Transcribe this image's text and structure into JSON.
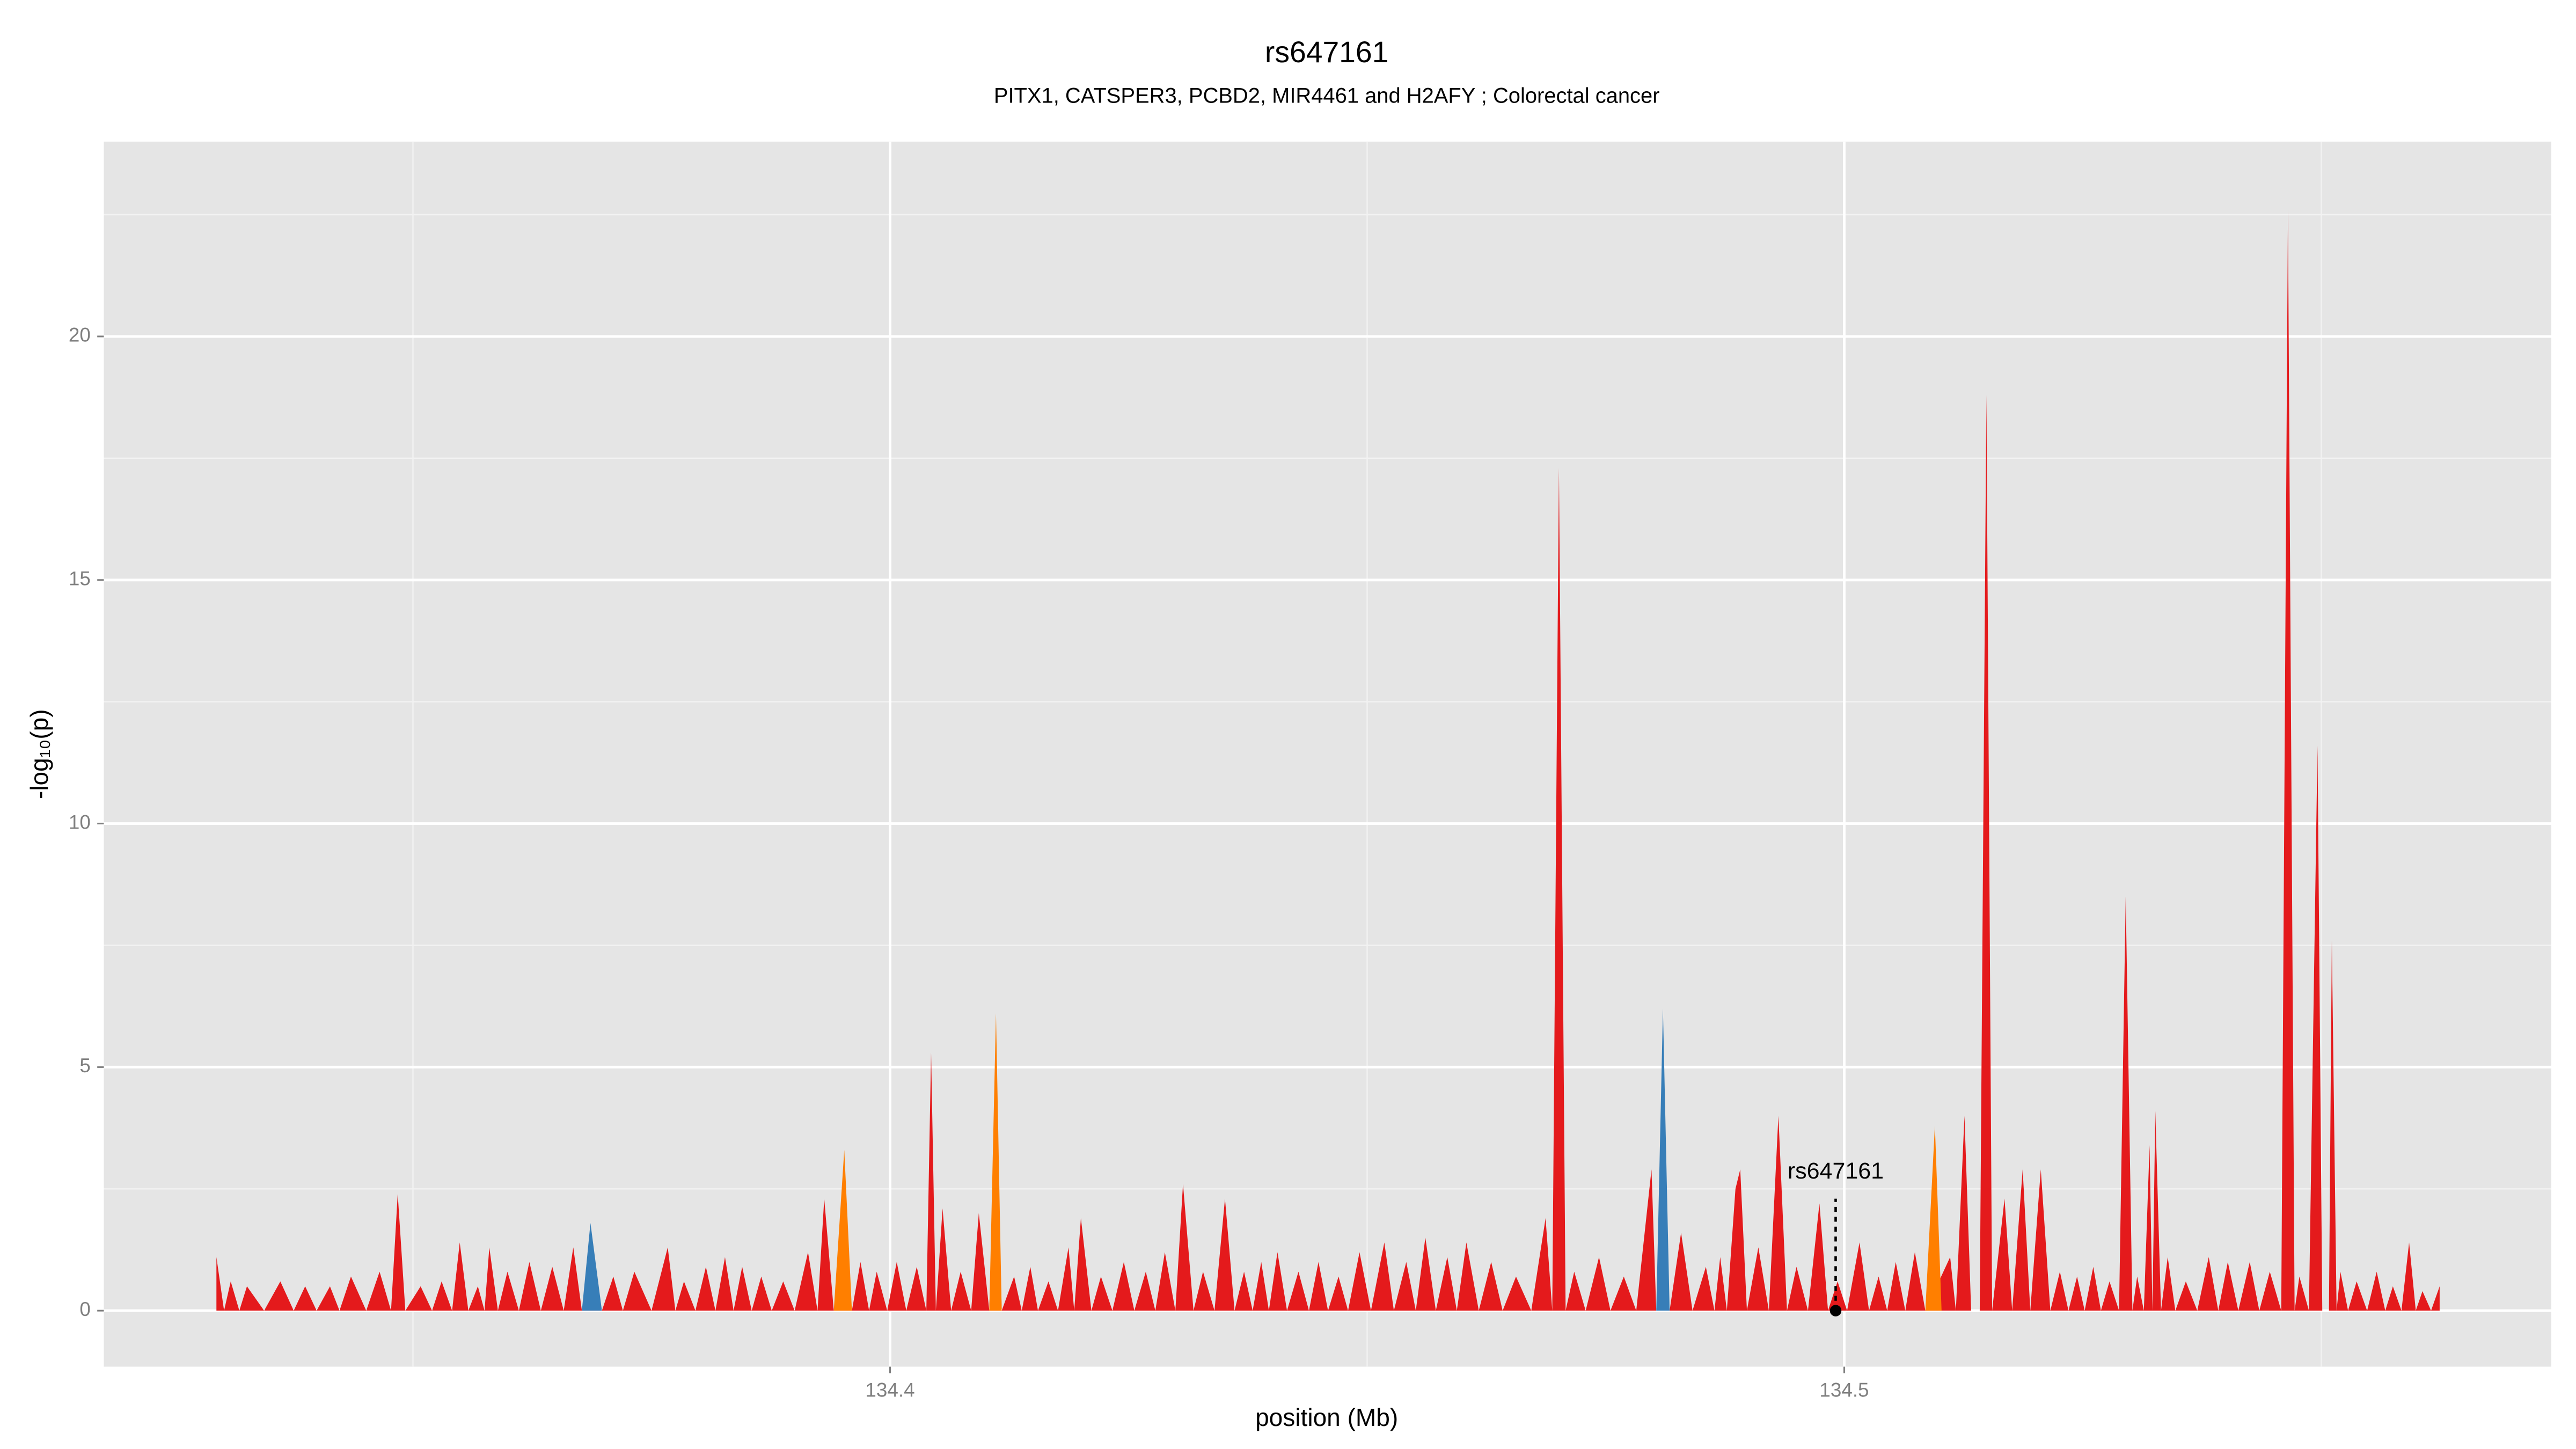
{
  "chart_data": {
    "type": "area",
    "title": "rs647161",
    "subtitle": "PITX1, CATSPER3, PCBD2, MIR4461 and H2AFY ; Colorectal cancer",
    "x_label": "position (Mb)",
    "y_label": "-log₁₀(p)",
    "xlim": [
      134.3176,
      134.5741
    ],
    "ylim": [
      -1.15,
      24.0
    ],
    "xticks": [
      134.4,
      134.5
    ],
    "yticks": [
      0,
      5,
      10,
      15,
      20
    ],
    "xminor": [
      134.35,
      134.45,
      134.55
    ],
    "yminor": [
      2.5,
      7.5,
      12.5,
      17.5,
      22.5
    ],
    "grid": true,
    "series": [
      {
        "name": "red",
        "color": "#e41a1c",
        "x": [
          134.3294,
          134.3302,
          134.3309,
          134.3318,
          134.3326,
          134.3344,
          134.3361,
          134.3375,
          134.3387,
          134.3399,
          134.3413,
          134.3423,
          134.3435,
          134.3451,
          134.3465,
          134.3477,
          134.3484,
          134.3492,
          134.3508,
          134.352,
          134.353,
          134.3541,
          134.3549,
          134.3558,
          134.3568,
          134.3575,
          134.358,
          134.3589,
          134.3599,
          134.3611,
          134.3622,
          134.3634,
          134.3646,
          134.3658,
          134.3668,
          134.3677,
          134.3686,
          134.3698,
          134.371,
          134.372,
          134.3732,
          134.375,
          134.3767,
          134.3775,
          134.3784,
          134.3796,
          134.3807,
          134.3817,
          134.3827,
          134.3836,
          134.3845,
          134.3855,
          134.3865,
          134.3876,
          134.3888,
          134.39,
          134.3914,
          134.3924,
          134.3931,
          134.3941,
          134.3952,
          134.396,
          134.3969,
          134.3978,
          134.3986,
          134.3997,
          134.4007,
          134.4017,
          134.4028,
          134.4038,
          134.4043,
          134.4048,
          134.4055,
          134.4064,
          134.4074,
          134.4085,
          134.4093,
          134.4104,
          134.4111,
          134.4117,
          134.413,
          134.4138,
          134.4147,
          134.4155,
          134.4166,
          134.4176,
          134.4187,
          134.4193,
          134.42,
          134.4211,
          134.4221,
          134.4233,
          134.4245,
          134.4256,
          134.4268,
          134.4278,
          134.4288,
          134.4299,
          134.4307,
          134.4318,
          134.4328,
          134.434,
          134.4351,
          134.4361,
          134.4371,
          134.438,
          134.4389,
          134.4397,
          134.4406,
          134.4416,
          134.4428,
          134.4439,
          134.4449,
          134.4459,
          134.447,
          134.448,
          134.4492,
          134.4504,
          134.4518,
          134.4528,
          134.4541,
          134.4551,
          134.4561,
          134.4572,
          134.4584,
          134.4594,
          134.4604,
          134.4617,
          134.463,
          134.4642,
          134.4656,
          134.4672,
          134.4687,
          134.4694,
          134.4701,
          134.4708,
          134.4717,
          134.4729,
          134.4743,
          134.4755,
          134.4769,
          134.4782,
          134.4798,
          134.4803,
          134.4817,
          134.4829,
          134.4841,
          134.4855,
          134.4864,
          134.487,
          134.4877,
          134.4886,
          134.4891,
          134.4898,
          134.491,
          134.4921,
          134.4931,
          134.494,
          134.495,
          134.4962,
          134.4974,
          134.4983,
          134.4993,
          134.5003,
          134.5016,
          134.5026,
          134.5036,
          134.5045,
          134.5054,
          134.5064,
          134.5074,
          134.5085,
          134.5111,
          134.5117,
          134.5126,
          134.5133,
          134.5142,
          134.5149,
          134.5155,
          134.5168,
          134.5176,
          134.5187,
          134.5195,
          134.5206,
          134.5216,
          134.5226,
          134.5235,
          134.5244,
          134.5252,
          134.5261,
          134.5269,
          134.5278,
          134.5288,
          134.5295,
          134.5302,
          134.5307,
          134.5314,
          134.532,
          134.5323,
          134.5326,
          134.5332,
          134.5339,
          134.5347,
          134.5358,
          134.537,
          134.5382,
          134.5392,
          134.5402,
          134.5413,
          134.5425,
          134.5435,
          134.5446,
          134.5458,
          134.5465,
          134.5472,
          134.5477,
          134.5487,
          134.5496,
          134.5501,
          134.5508,
          134.5511,
          134.5516,
          134.552,
          134.5528,
          134.5537,
          134.5548,
          134.5558,
          134.5567,
          134.5575,
          134.5584,
          134.5592,
          134.5599,
          134.5606,
          134.5615,
          134.5624
        ],
        "values": [
          1.1,
          0,
          0.6,
          0,
          0.5,
          0,
          0.6,
          0,
          0.5,
          0,
          0.5,
          0,
          0.7,
          0,
          0.8,
          0,
          2.4,
          0,
          0.5,
          0,
          0.6,
          0,
          1.4,
          0,
          0.5,
          0,
          1.3,
          0,
          0.8,
          0,
          1.0,
          0,
          0.9,
          0,
          1.3,
          0,
          0.4,
          0,
          0.7,
          0,
          0.8,
          0,
          1.3,
          0,
          0.6,
          0,
          0.9,
          0,
          1.1,
          0,
          0.9,
          0,
          0.7,
          0,
          0.6,
          0,
          1.2,
          0,
          2.3,
          0,
          0.4,
          0,
          1.0,
          0,
          0.8,
          0,
          1.0,
          0,
          0.9,
          0,
          5.3,
          0,
          2.1,
          0,
          0.8,
          0,
          2.0,
          0,
          5.0,
          0,
          0.7,
          0,
          0.9,
          0,
          0.6,
          0,
          1.3,
          0,
          1.9,
          0,
          0.7,
          0,
          1.0,
          0,
          0.8,
          0,
          1.2,
          0,
          2.6,
          0,
          0.8,
          0,
          2.3,
          0,
          0.8,
          0,
          1.0,
          0,
          1.2,
          0,
          0.8,
          0,
          1.0,
          0,
          0.7,
          0,
          1.2,
          0,
          1.4,
          0,
          1.0,
          0,
          1.5,
          0,
          1.1,
          0,
          1.4,
          0,
          1.0,
          0,
          0.7,
          0,
          1.9,
          0,
          17.3,
          0,
          0.8,
          0,
          1.1,
          0,
          0.7,
          0,
          2.9,
          0,
          0,
          1.6,
          0,
          0.9,
          0,
          1.1,
          0,
          2.5,
          2.9,
          0,
          1.3,
          0,
          4.0,
          0,
          0.9,
          0,
          2.2,
          0,
          0.6,
          0,
          1.4,
          0,
          0.7,
          0,
          1.0,
          0,
          1.2,
          0,
          1.1,
          0,
          4.0,
          0,
          0,
          18.8,
          0,
          2.3,
          0,
          2.9,
          0,
          2.9,
          0,
          0.8,
          0,
          0.7,
          0,
          0.9,
          0,
          0.6,
          0,
          8.5,
          0,
          0.7,
          0,
          3.4,
          0,
          4.1,
          0,
          1.1,
          0,
          0.6,
          0,
          1.1,
          0,
          1.0,
          0,
          1.0,
          0,
          0.8,
          0,
          22.6,
          0,
          0.7,
          0,
          11.6,
          0,
          0,
          7.6,
          0,
          0.8,
          0,
          0.6,
          0,
          0.8,
          0,
          0.5,
          0,
          1.4,
          0,
          0.4,
          0,
          0.5
        ]
      },
      {
        "name": "orange",
        "color": "#ff7f00",
        "x": [
          134.3941,
          134.3952,
          134.396,
          134.4104,
          134.4111,
          134.4117,
          134.5085,
          134.5095,
          134.5102
        ],
        "values": [
          0,
          3.3,
          0,
          0,
          6.1,
          0,
          0,
          3.8,
          0
        ]
      },
      {
        "name": "blue",
        "color": "#377eb8",
        "x": [
          134.3677,
          134.3686,
          134.3698,
          134.4803,
          134.481,
          134.4817
        ],
        "values": [
          0,
          1.8,
          0,
          0,
          6.2,
          0
        ]
      }
    ],
    "annotation": {
      "text": "rs647161",
      "x": 134.4991,
      "y": 0
    }
  }
}
